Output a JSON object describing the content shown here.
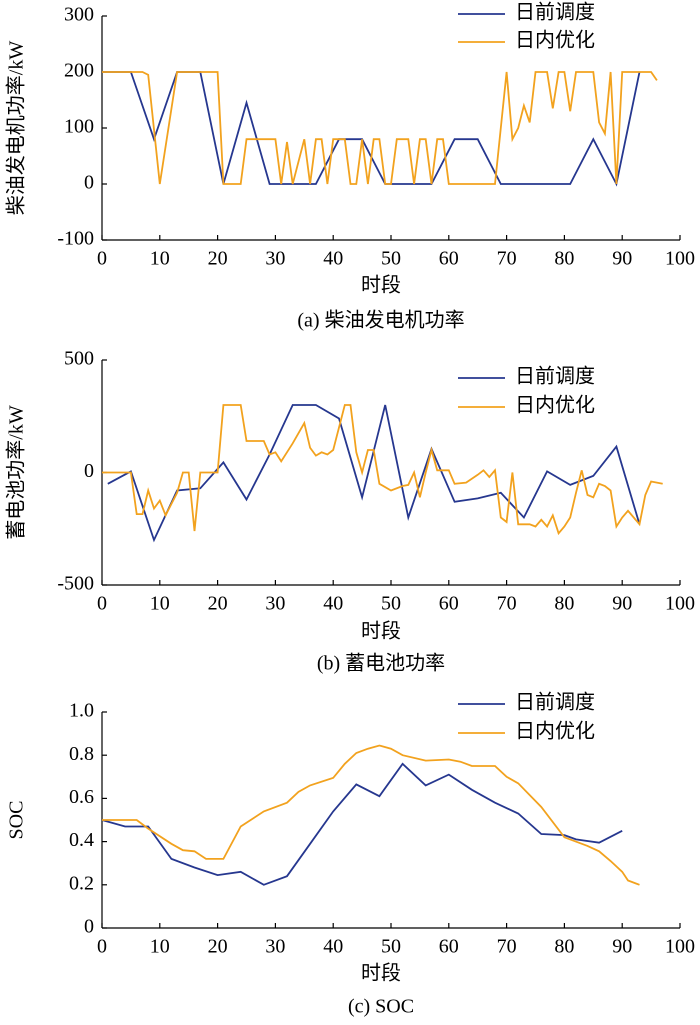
{
  "chart_data": [
    {
      "type": "line",
      "caption": "(a)  柴油发电机功率",
      "xlabel": "时段",
      "ylabel": "柴油发电机功率/kW",
      "xlim": [
        0,
        100
      ],
      "xticks": [
        0,
        10,
        20,
        30,
        40,
        50,
        60,
        70,
        80,
        90,
        100
      ],
      "ylim": [
        -100,
        300
      ],
      "yticks": [
        -100,
        0,
        100,
        200,
        300
      ],
      "legend": "upper right",
      "series": [
        {
          "name": "日前调度",
          "color": "#26378f",
          "x": [
            0,
            5,
            9,
            13,
            17,
            21,
            25,
            29,
            37,
            41,
            45,
            49,
            57,
            61,
            65,
            69,
            81,
            85,
            89,
            93
          ],
          "values": [
            200,
            200,
            80,
            200,
            200,
            0,
            145,
            0,
            0,
            80,
            80,
            0,
            0,
            80,
            80,
            0,
            0,
            80,
            0,
            200
          ]
        },
        {
          "name": "日内优化",
          "color": "#f2a21e",
          "x": [
            0,
            7,
            8,
            10,
            13,
            20,
            21,
            24,
            25,
            30,
            31,
            32,
            33,
            35,
            36,
            37,
            38,
            39,
            40,
            42,
            43,
            44,
            45,
            46,
            47,
            48,
            49,
            50,
            51,
            53,
            54,
            55,
            56,
            57,
            58,
            59,
            60,
            68,
            70,
            71,
            72,
            73,
            74,
            75,
            77,
            78,
            79,
            80,
            81,
            82,
            85,
            86,
            87,
            88,
            89,
            90,
            95,
            96
          ],
          "values": [
            200,
            200,
            195,
            0,
            200,
            200,
            0,
            0,
            80,
            80,
            0,
            75,
            0,
            80,
            0,
            80,
            80,
            0,
            80,
            80,
            0,
            0,
            80,
            0,
            80,
            80,
            0,
            0,
            80,
            80,
            0,
            80,
            80,
            0,
            80,
            80,
            0,
            0,
            200,
            80,
            100,
            140,
            110,
            200,
            200,
            135,
            200,
            200,
            130,
            200,
            200,
            110,
            90,
            200,
            0,
            200,
            200,
            185
          ]
        }
      ]
    },
    {
      "type": "line",
      "caption": "(b)  蓄电池功率",
      "xlabel": "时段",
      "ylabel": "蓄电池功率/kW",
      "xlim": [
        0,
        100
      ],
      "xticks": [
        0,
        10,
        20,
        30,
        40,
        50,
        60,
        70,
        80,
        90,
        100
      ],
      "ylim": [
        -500,
        500
      ],
      "yticks": [
        -500,
        0,
        500
      ],
      "legend": "upper right",
      "series": [
        {
          "name": "日前调度",
          "color": "#26378f",
          "x": [
            1,
            5,
            9,
            13,
            17,
            21,
            25,
            29,
            33,
            37,
            41,
            45,
            49,
            53,
            57,
            61,
            65,
            69,
            73,
            77,
            81,
            85,
            89,
            93
          ],
          "values": [
            -50,
            5,
            -300,
            -80,
            -70,
            45,
            -120,
            80,
            300,
            300,
            240,
            -110,
            300,
            -200,
            105,
            -130,
            -115,
            -90,
            -200,
            5,
            -55,
            -15,
            115,
            -230
          ]
        },
        {
          "name": "日内优化",
          "color": "#f2a21e",
          "x": [
            0,
            5,
            6,
            7,
            8,
            9,
            10,
            11,
            13,
            14,
            15,
            16,
            17,
            20,
            21,
            24,
            25,
            28,
            29,
            30,
            31,
            33,
            35,
            36,
            37,
            38,
            39,
            40,
            42,
            43,
            44,
            45,
            46,
            47,
            48,
            50,
            52,
            53,
            54,
            55,
            56,
            57,
            58,
            60,
            61,
            63,
            65,
            66,
            67,
            68,
            69,
            70,
            71,
            72,
            74,
            75,
            76,
            77,
            78,
            79,
            80,
            81,
            82,
            83,
            84,
            85,
            86,
            87,
            88,
            89,
            90,
            91,
            93,
            94,
            95,
            97
          ],
          "values": [
            0,
            0,
            -185,
            -185,
            -80,
            -160,
            -125,
            -190,
            -90,
            0,
            0,
            -260,
            0,
            0,
            300,
            300,
            140,
            140,
            80,
            90,
            50,
            130,
            220,
            110,
            75,
            90,
            80,
            100,
            300,
            300,
            90,
            0,
            100,
            100,
            -50,
            -80,
            -60,
            -55,
            0,
            -110,
            0,
            100,
            10,
            10,
            -50,
            -45,
            -10,
            10,
            -20,
            10,
            -200,
            -220,
            0,
            -230,
            -230,
            -240,
            -210,
            -240,
            -190,
            -270,
            -240,
            -200,
            -90,
            10,
            -100,
            -110,
            -50,
            -60,
            -80,
            -240,
            -200,
            -170,
            -230,
            -100,
            -40,
            -50
          ]
        }
      ]
    },
    {
      "type": "line",
      "caption": "(c)  SOC",
      "xlabel": "时段",
      "ylabel": "SOC",
      "xlim": [
        0,
        100
      ],
      "xticks": [
        0,
        10,
        20,
        30,
        40,
        50,
        60,
        70,
        80,
        90,
        100
      ],
      "ylim": [
        0,
        1
      ],
      "yticks": [
        0,
        0.2,
        0.4,
        0.6,
        0.8,
        {
          "value": 1,
          "label": "1.0"
        }
      ],
      "legend": "upper right",
      "series": [
        {
          "name": "日前调度",
          "color": "#26378f",
          "x": [
            0,
            4,
            8,
            12,
            16,
            20,
            24,
            28,
            32,
            36,
            40,
            44,
            48,
            52,
            56,
            60,
            64,
            68,
            72,
            76,
            80,
            82,
            86,
            90
          ],
          "values": [
            0.5,
            0.47,
            0.47,
            0.32,
            0.28,
            0.245,
            0.26,
            0.2,
            0.24,
            0.39,
            0.54,
            0.665,
            0.61,
            0.76,
            0.66,
            0.71,
            0.64,
            0.58,
            0.53,
            0.435,
            0.43,
            0.41,
            0.395,
            0.45
          ]
        },
        {
          "name": "日内优化",
          "color": "#f2a21e",
          "x": [
            0,
            6,
            8,
            12,
            14,
            16,
            18,
            21,
            24,
            28,
            32,
            34,
            36,
            40,
            42,
            44,
            46,
            48,
            50,
            52,
            56,
            60,
            62,
            64,
            68,
            70,
            72,
            76,
            80,
            84,
            86,
            88,
            90,
            91,
            93
          ],
          "values": [
            0.5,
            0.5,
            0.46,
            0.39,
            0.36,
            0.355,
            0.32,
            0.32,
            0.47,
            0.54,
            0.58,
            0.63,
            0.66,
            0.695,
            0.76,
            0.81,
            0.83,
            0.845,
            0.83,
            0.8,
            0.775,
            0.78,
            0.77,
            0.75,
            0.75,
            0.7,
            0.67,
            0.56,
            0.42,
            0.38,
            0.355,
            0.31,
            0.26,
            0.22,
            0.2
          ]
        }
      ]
    }
  ]
}
